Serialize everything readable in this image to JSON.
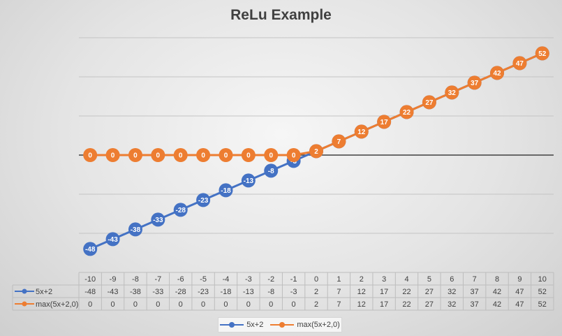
{
  "chart_data": {
    "type": "line",
    "title": "ReLu Example",
    "xlabel": "",
    "ylabel": "",
    "x": [
      -10,
      -9,
      -8,
      -7,
      -6,
      -5,
      -4,
      -3,
      -2,
      -1,
      0,
      1,
      2,
      3,
      4,
      5,
      6,
      7,
      8,
      9,
      10
    ],
    "ylim": [
      -60,
      60
    ],
    "grid": true,
    "data_table": true,
    "legend_position": "bottom",
    "series": [
      {
        "name": "5x+2",
        "color": "#4472C4",
        "values": [
          -48,
          -43,
          -38,
          -33,
          -28,
          -23,
          -18,
          -13,
          -8,
          -3,
          2,
          7,
          12,
          17,
          22,
          27,
          32,
          37,
          42,
          47,
          52
        ]
      },
      {
        "name": "max(5x+2,0)",
        "color": "#ED7D31",
        "values": [
          0,
          0,
          0,
          0,
          0,
          0,
          0,
          0,
          0,
          0,
          2,
          7,
          12,
          17,
          22,
          27,
          32,
          37,
          42,
          47,
          52
        ]
      }
    ]
  }
}
